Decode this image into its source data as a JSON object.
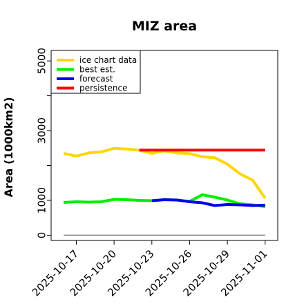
{
  "chart_data": {
    "type": "line",
    "title": "MIZ area",
    "ylabel": "Area (1000km2)",
    "xlabel": "",
    "ylim": [
      -150,
      5300
    ],
    "xlim": [
      "2025-10-15",
      "2025-11-02"
    ],
    "yticks": [
      0,
      1000,
      3000,
      5000
    ],
    "yticks_minor": [
      2000,
      4000
    ],
    "xticks": [
      "2025-10-17",
      "2025-10-20",
      "2025-10-23",
      "2025-10-26",
      "2025-10-29",
      "2025-11-01"
    ],
    "highlight_xtick": "2025-10-23",
    "highlight_color": "#008000",
    "legend_position": "upper left",
    "grid": false,
    "series": [
      {
        "name": "ice chart data",
        "color": "#FFD700",
        "x": [
          "2025-10-16",
          "2025-10-17",
          "2025-10-18",
          "2025-10-19",
          "2025-10-20",
          "2025-10-21",
          "2025-10-22",
          "2025-10-23",
          "2025-10-24",
          "2025-10-25",
          "2025-10-26",
          "2025-10-27",
          "2025-10-28",
          "2025-10-29",
          "2025-10-30",
          "2025-10-31",
          "2025-11-01"
        ],
        "values": [
          2350,
          2270,
          2360,
          2390,
          2490,
          2470,
          2440,
          2350,
          2420,
          2360,
          2340,
          2250,
          2220,
          2040,
          1760,
          1580,
          1060
        ]
      },
      {
        "name": "best est.",
        "color": "#00EE00",
        "x": [
          "2025-10-16",
          "2025-10-17",
          "2025-10-18",
          "2025-10-19",
          "2025-10-20",
          "2025-10-21",
          "2025-10-22",
          "2025-10-23",
          "2025-10-24",
          "2025-10-25",
          "2025-10-26",
          "2025-10-27",
          "2025-10-28",
          "2025-10-29",
          "2025-10-30",
          "2025-10-31",
          "2025-11-01"
        ],
        "values": [
          940,
          960,
          950,
          960,
          1030,
          1020,
          1000,
          990,
          1020,
          1010,
          970,
          1160,
          1090,
          1010,
          900,
          870,
          820
        ]
      },
      {
        "name": "forecast",
        "color": "#0000EE",
        "x": [
          "2025-10-23",
          "2025-10-24",
          "2025-10-25",
          "2025-10-26",
          "2025-10-27",
          "2025-10-28",
          "2025-10-29",
          "2025-10-30",
          "2025-10-31",
          "2025-11-01"
        ],
        "values": [
          990,
          1020,
          1010,
          960,
          930,
          850,
          880,
          870,
          850,
          860
        ]
      },
      {
        "name": "persistence",
        "color": "#FF0000",
        "x": [
          "2025-10-22",
          "2025-11-01"
        ],
        "values": [
          2440,
          2440
        ]
      },
      {
        "name": "",
        "color": "#808080",
        "x": [
          "2025-10-16",
          "2025-11-01"
        ],
        "values": [
          0,
          0
        ]
      }
    ]
  }
}
